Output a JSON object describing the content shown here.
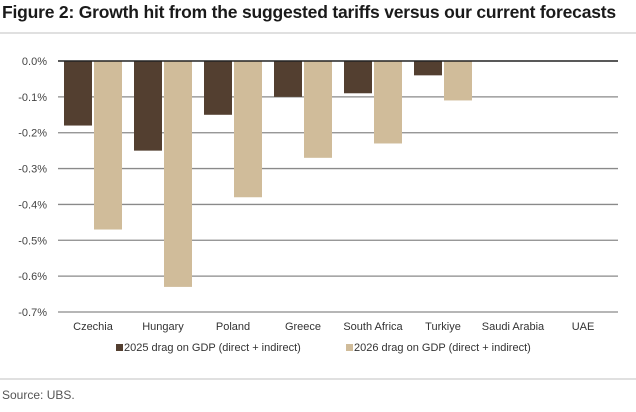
{
  "title": "Figure 2: Growth hit from the suggested tariffs versus our current forecasts",
  "source": "Source: UBS.",
  "colors": {
    "s2025": "#533f30",
    "s2026": "#d0bc9a",
    "grid": "#8a8a8a",
    "axis": "#222222"
  },
  "chart_data": {
    "type": "bar",
    "title": "Figure 2: Growth hit from the suggested tariffs versus our current forecasts",
    "xlabel": "",
    "ylabel": "",
    "categories": [
      "Czechia",
      "Hungary",
      "Poland",
      "Greece",
      "South Africa",
      "Turkiye",
      "Saudi Arabia",
      "UAE"
    ],
    "series": [
      {
        "name": "2025 drag on GDP (direct + indirect)",
        "values": [
          -0.18,
          -0.25,
          -0.15,
          -0.1,
          -0.09,
          -0.04,
          0.0,
          0.0
        ]
      },
      {
        "name": "2026 drag on GDP (direct + indirect)",
        "values": [
          -0.47,
          -0.63,
          -0.38,
          -0.27,
          -0.23,
          -0.11,
          0.0,
          0.0
        ]
      }
    ],
    "ylim": [
      -0.7,
      0.0
    ],
    "yticks": [
      0.0,
      -0.1,
      -0.2,
      -0.3,
      -0.4,
      -0.5,
      -0.6,
      -0.7
    ],
    "ytick_labels": [
      "0.0%",
      "-0.1%",
      "-0.2%",
      "-0.3%",
      "-0.4%",
      "-0.5%",
      "-0.6%",
      "-0.7%"
    ],
    "grid": true,
    "legend_position": "bottom"
  }
}
